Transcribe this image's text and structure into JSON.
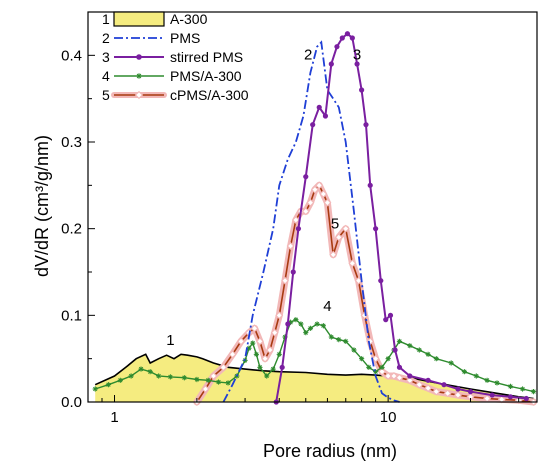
{
  "chart_data": {
    "type": "line",
    "xlabel": "Pore radius  (nm)",
    "ylabel": "dV/dR  (cm³/g/nm)",
    "xscale": "log",
    "xlim": [
      0.8,
      35
    ],
    "ylim": [
      0,
      0.45
    ],
    "x_ticks": [
      {
        "value": 1,
        "label": "1"
      },
      {
        "value": 10,
        "label": "10"
      }
    ],
    "y_ticks": [
      {
        "value": 0.0,
        "label": "0.0"
      },
      {
        "value": 0.1,
        "label": "0.1"
      },
      {
        "value": 0.2,
        "label": "0.2"
      },
      {
        "value": 0.3,
        "label": "0.3"
      },
      {
        "value": 0.4,
        "label": "0.4"
      }
    ],
    "grid": false,
    "legend_position": "top-left",
    "series": [
      {
        "number": "1",
        "name": "A-300",
        "color": "#000000",
        "fill": "#f5ec80",
        "style": "filled-area",
        "curve_label": "1",
        "label_at": [
          1.6,
          0.066
        ],
        "x": [
          0.85,
          1.0,
          1.1,
          1.2,
          1.3,
          1.35,
          1.45,
          1.55,
          1.65,
          1.75,
          1.85,
          2.0,
          2.1,
          2.3,
          2.6,
          3.0,
          3.5,
          4.0,
          5.0,
          6.0,
          7.0,
          8.0,
          9.0,
          10.0,
          12.0,
          15.0,
          20.0,
          25.0,
          30.0,
          34.0
        ],
        "y": [
          0.02,
          0.03,
          0.04,
          0.05,
          0.055,
          0.045,
          0.05,
          0.054,
          0.05,
          0.055,
          0.054,
          0.052,
          0.05,
          0.045,
          0.04,
          0.038,
          0.036,
          0.035,
          0.034,
          0.032,
          0.031,
          0.032,
          0.031,
          0.03,
          0.028,
          0.022,
          0.015,
          0.01,
          0.006,
          0.004
        ]
      },
      {
        "number": "2",
        "name": "PMS",
        "color": "#1f3fd6",
        "style": "dash-dot",
        "curve_label": "2",
        "label_at": [
          5.1,
          0.395
        ],
        "x": [
          2.5,
          2.7,
          3.0,
          3.2,
          3.5,
          3.8,
          4.0,
          4.3,
          4.6,
          4.9,
          5.2,
          5.5,
          5.7,
          6.0,
          6.3,
          6.6,
          7.0,
          7.5,
          8.0,
          8.5,
          9.0,
          9.5,
          10.0,
          10.5,
          11.0
        ],
        "y": [
          0.0,
          0.02,
          0.05,
          0.1,
          0.15,
          0.2,
          0.25,
          0.28,
          0.3,
          0.33,
          0.38,
          0.41,
          0.415,
          0.36,
          0.35,
          0.34,
          0.3,
          0.22,
          0.14,
          0.07,
          0.03,
          0.01,
          0.005,
          0.002,
          0.0
        ]
      },
      {
        "number": "3",
        "name": "stirred PMS",
        "color": "#7a1fa0",
        "style": "line-dots",
        "curve_label": "3",
        "label_at": [
          7.7,
          0.395
        ],
        "x": [
          3.9,
          4.1,
          4.3,
          4.5,
          4.7,
          5.0,
          5.3,
          5.6,
          5.9,
          6.2,
          6.5,
          6.8,
          7.1,
          7.4,
          7.7,
          8.0,
          8.3,
          8.6,
          9.0,
          9.4,
          9.8,
          10.2,
          10.6,
          11.0,
          12.0,
          14.0,
          16.0,
          18.0,
          20.0,
          24.0,
          28.0,
          32.0
        ],
        "y": [
          0.0,
          0.04,
          0.09,
          0.15,
          0.2,
          0.26,
          0.32,
          0.34,
          0.33,
          0.39,
          0.41,
          0.42,
          0.425,
          0.42,
          0.39,
          0.36,
          0.32,
          0.25,
          0.2,
          0.14,
          0.095,
          0.1,
          0.06,
          0.04,
          0.03,
          0.025,
          0.02,
          0.015,
          0.012,
          0.008,
          0.006,
          0.004
        ]
      },
      {
        "number": "4",
        "name": "PMS/A-300",
        "color": "#2e8b2e",
        "style": "line-star-markers",
        "curve_label": "4",
        "label_at": [
          6.0,
          0.105
        ],
        "x": [
          0.85,
          0.95,
          1.05,
          1.15,
          1.25,
          1.35,
          1.45,
          1.6,
          1.8,
          2.0,
          2.2,
          2.4,
          2.6,
          2.8,
          3.0,
          3.1,
          3.2,
          3.3,
          3.4,
          3.6,
          3.8,
          4.0,
          4.2,
          4.4,
          4.6,
          4.8,
          5.0,
          5.2,
          5.5,
          5.8,
          6.2,
          6.6,
          7.0,
          7.5,
          8.0,
          8.5,
          9.0,
          9.5,
          10.0,
          10.5,
          11.0,
          12.0,
          13.0,
          14.0,
          15.0,
          17.0,
          19.0,
          21.0,
          23.0,
          25.0,
          28.0,
          31.0,
          34.0
        ],
        "y": [
          0.015,
          0.02,
          0.025,
          0.03,
          0.038,
          0.035,
          0.03,
          0.029,
          0.028,
          0.026,
          0.025,
          0.023,
          0.022,
          0.03,
          0.048,
          0.062,
          0.068,
          0.055,
          0.04,
          0.03,
          0.038,
          0.055,
          0.075,
          0.092,
          0.095,
          0.09,
          0.08,
          0.085,
          0.09,
          0.088,
          0.075,
          0.072,
          0.07,
          0.06,
          0.05,
          0.04,
          0.035,
          0.04,
          0.05,
          0.06,
          0.07,
          0.065,
          0.06,
          0.055,
          0.05,
          0.045,
          0.035,
          0.03,
          0.025,
          0.022,
          0.018,
          0.015,
          0.012
        ]
      },
      {
        "number": "5",
        "name": "cPMS/A-300",
        "color": "#a83a10",
        "fill": "#f2b8b8",
        "style": "line-open-diamonds",
        "curve_label": "5",
        "label_at": [
          6.4,
          0.2
        ],
        "x": [
          2.0,
          2.15,
          2.3,
          2.5,
          2.7,
          2.9,
          3.1,
          3.25,
          3.4,
          3.55,
          3.7,
          3.85,
          4.0,
          4.2,
          4.4,
          4.6,
          4.8,
          5.0,
          5.2,
          5.4,
          5.6,
          5.8,
          6.0,
          6.3,
          6.6,
          7.0,
          7.4,
          7.8,
          8.2,
          8.6,
          9.0,
          9.5,
          10.0,
          10.5,
          11.0,
          12.0,
          13.0,
          14.0,
          15.0,
          16.5,
          18.0,
          20.0,
          23.0,
          26.0,
          30.0,
          34.0
        ],
        "y": [
          0.0,
          0.015,
          0.03,
          0.04,
          0.055,
          0.07,
          0.08,
          0.085,
          0.07,
          0.05,
          0.06,
          0.08,
          0.1,
          0.14,
          0.18,
          0.21,
          0.22,
          0.22,
          0.23,
          0.245,
          0.25,
          0.24,
          0.23,
          0.17,
          0.19,
          0.2,
          0.16,
          0.14,
          0.1,
          0.07,
          0.05,
          0.035,
          0.03,
          0.03,
          0.028,
          0.025,
          0.02,
          0.016,
          0.012,
          0.01,
          0.008,
          0.006,
          0.004,
          0.003,
          0.002,
          0.0
        ]
      }
    ]
  }
}
